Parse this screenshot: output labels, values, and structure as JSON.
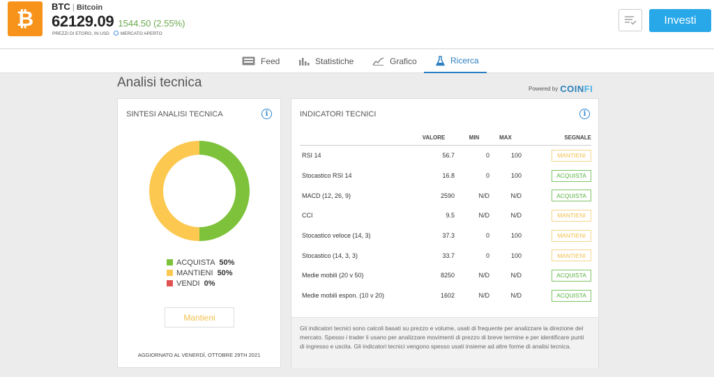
{
  "asset": {
    "symbol": "BTC",
    "separator": "|",
    "name": "Bitcoin",
    "price": "62129.09",
    "change": "1544.50 (2.55%)",
    "price_note": "PREZZI DI ETORO, IN USD",
    "market_status": "MERCATO APERTO",
    "logo_icon": "bitcoin-icon",
    "logo_color": "#f7931a"
  },
  "header": {
    "watchlist_icon": "watchlist-icon",
    "invest_label": "Investi",
    "invest_color": "#28a8e8"
  },
  "nav": {
    "tabs": [
      {
        "label": "Feed",
        "icon": "feed-icon"
      },
      {
        "label": "Statistiche",
        "icon": "bar-chart-icon"
      },
      {
        "label": "Grafico",
        "icon": "line-chart-icon"
      },
      {
        "label": "Ricerca",
        "icon": "flask-icon"
      }
    ],
    "active": "Ricerca"
  },
  "page": {
    "title": "Analisi tecnica",
    "powered_by": "Powered by",
    "brand_a": "COIN",
    "brand_b": "FI"
  },
  "summary": {
    "title": "SINTESI ANALISI TECNICA",
    "legend": [
      {
        "label": "ACQUISTA",
        "pct": "50%",
        "color": "#7dc23a"
      },
      {
        "label": "MANTIENI",
        "pct": "50%",
        "color": "#fcc850"
      },
      {
        "label": "VENDI",
        "pct": "0%",
        "color": "#e05252"
      }
    ],
    "verdict": "Mantieni",
    "updated": "AGGIORNATO AL VENERDÌ, OTTOBRE 29TH 2021"
  },
  "indicators": {
    "title": "INDICATORI TECNICI",
    "columns": [
      "VALORE",
      "MIN",
      "MAX",
      "SEGNALE"
    ],
    "rows": [
      {
        "name": "RSI 14",
        "value": "56.7",
        "min": "0",
        "max": "100",
        "signal": "MANTIENI",
        "type": "hold"
      },
      {
        "name": "Stocastico RSI 14",
        "value": "16.8",
        "min": "0",
        "max": "100",
        "signal": "ACQUISTA",
        "type": "buy"
      },
      {
        "name": "MACD (12, 26, 9)",
        "value": "2590",
        "min": "N/D",
        "max": "N/D",
        "signal": "ACQUISTA",
        "type": "buy"
      },
      {
        "name": "CCI",
        "value": "9.5",
        "min": "N/D",
        "max": "N/D",
        "signal": "MANTIENI",
        "type": "hold"
      },
      {
        "name": "Stocastico veloce (14, 3)",
        "value": "37.3",
        "min": "0",
        "max": "100",
        "signal": "MANTIENI",
        "type": "hold"
      },
      {
        "name": "Stocastico (14, 3, 3)",
        "value": "33.7",
        "min": "0",
        "max": "100",
        "signal": "MANTIENI",
        "type": "hold"
      },
      {
        "name": "Medie mobili (20 v 50)",
        "value": "8250",
        "min": "N/D",
        "max": "N/D",
        "signal": "ACQUISTA",
        "type": "buy"
      },
      {
        "name": "Medie mobili espon. (10 v 20)",
        "value": "1602",
        "min": "N/D",
        "max": "N/D",
        "signal": "ACQUISTA",
        "type": "buy"
      }
    ],
    "description": "Gli indicatori tecnici sono calcoli basati su prezzo e volume, usati di frequente per analizzare la direzione del mercato. Spesso i trader li usano per analizzare movimenti di prezzo di breve termine e per identificare punti di ingresso e uscita. Gli indicatori tecnici vengono spesso usati insieme ad altre forme di analisi tecnica."
  }
}
